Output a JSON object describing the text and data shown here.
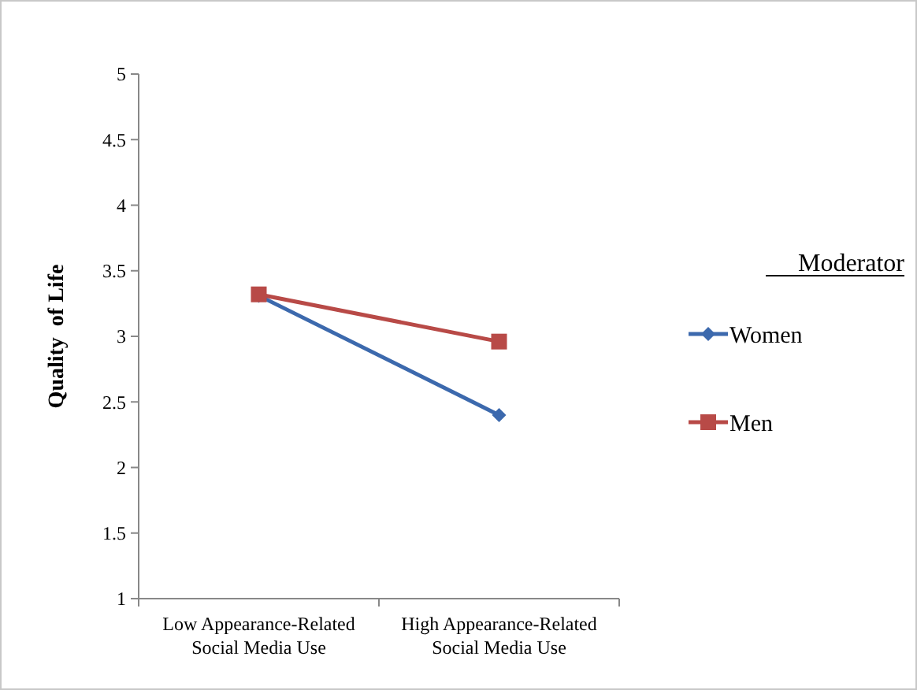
{
  "chart_data": {
    "type": "line",
    "ylabel": "Quality  of Life",
    "legend_title": "Moderator",
    "categories": [
      "Low Appearance-Related\nSocial Media Use",
      "High Appearance-Related\nSocial Media Use"
    ],
    "series": [
      {
        "name": "Women",
        "color": "#3c69ad",
        "values": [
          3.31,
          2.4
        ],
        "marker": "diamond"
      },
      {
        "name": "Men",
        "color": "#b84a47",
        "values": [
          3.32,
          2.96
        ],
        "marker": "square"
      }
    ],
    "ylim": [
      1,
      5
    ],
    "yticks": [
      1,
      1.5,
      2,
      2.5,
      3,
      3.5,
      4,
      4.5,
      5
    ],
    "grid": false,
    "legend": "right"
  }
}
